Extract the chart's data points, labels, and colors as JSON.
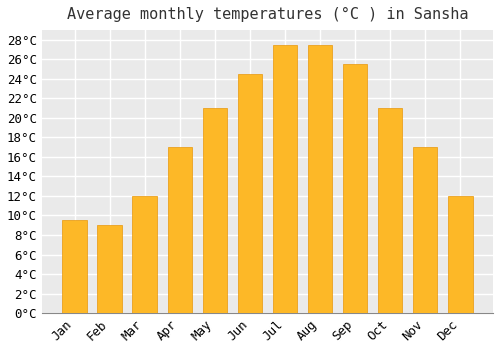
{
  "title": "Average monthly temperatures (°C ) in Sansha",
  "months": [
    "Jan",
    "Feb",
    "Mar",
    "Apr",
    "May",
    "Jun",
    "Jul",
    "Aug",
    "Sep",
    "Oct",
    "Nov",
    "Dec"
  ],
  "values": [
    9.5,
    9.0,
    12.0,
    17.0,
    21.0,
    24.5,
    27.5,
    27.5,
    25.5,
    21.0,
    17.0,
    12.0
  ],
  "bar_color": "#FDB827",
  "bar_edge_color": "#E8970A",
  "figure_bg": "#FFFFFF",
  "axes_bg": "#EAEAEA",
  "grid_color": "#FFFFFF",
  "ylim": [
    0,
    29
  ],
  "ytick_step": 2,
  "title_fontsize": 11,
  "tick_fontsize": 9,
  "font_family": "monospace"
}
